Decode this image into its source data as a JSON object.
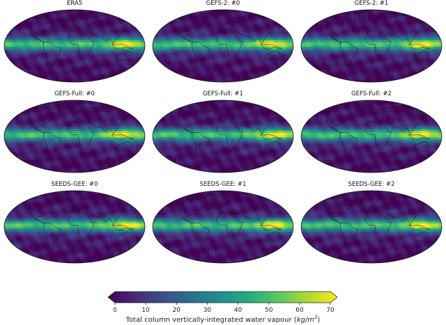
{
  "panels": [
    {
      "title": "ERA5",
      "variant": 0
    },
    {
      "title": "GEFS-2: #0",
      "variant": 1
    },
    {
      "title": "GEFS-2: #1",
      "variant": 2
    },
    {
      "title": "GEFS-Full: #0",
      "variant": 3
    },
    {
      "title": "GEFS-Full: #1",
      "variant": 4
    },
    {
      "title": "GEFS-Full: #2",
      "variant": 5
    },
    {
      "title": "SEEDS-GEE: #0",
      "variant": 6
    },
    {
      "title": "SEEDS-GEE: #1",
      "variant": 7
    },
    {
      "title": "SEEDS-GEE: #2",
      "variant": 8
    }
  ],
  "colorbar": {
    "ticks": [
      "0",
      "10",
      "20",
      "30",
      "40",
      "50",
      "60",
      "70"
    ],
    "label_text": "Total column vertically-integrated water vapour (",
    "label_unit": "kg/m",
    "label_exp": "2",
    "label_close": ")",
    "colors": [
      "#440154",
      "#472d7b",
      "#3b528b",
      "#2c728e",
      "#21918c",
      "#28ae80",
      "#5ec962",
      "#addc30",
      "#fde725"
    ]
  }
}
